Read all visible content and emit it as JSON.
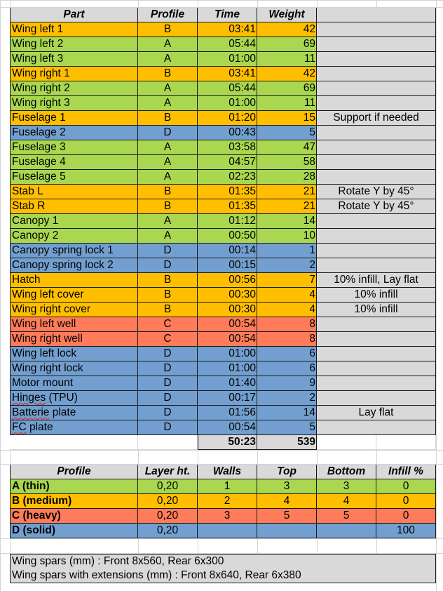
{
  "parts_table": {
    "headers": {
      "part": "Part",
      "profile": "Profile",
      "time": "Time",
      "weight": "Weight"
    },
    "rows": [
      {
        "part": "Wing left 1",
        "profile": "B",
        "time": "03:41",
        "weight": "42",
        "note": ""
      },
      {
        "part": "Wing left 2",
        "profile": "A",
        "time": "05:44",
        "weight": "69",
        "note": ""
      },
      {
        "part": "Wing left 3",
        "profile": "A",
        "time": "01:00",
        "weight": "11",
        "note": ""
      },
      {
        "part": "Wing right 1",
        "profile": "B",
        "time": "03:41",
        "weight": "42",
        "note": ""
      },
      {
        "part": "Wing right 2",
        "profile": "A",
        "time": "05:44",
        "weight": "69",
        "note": ""
      },
      {
        "part": "Wing right 3",
        "profile": "A",
        "time": "01:00",
        "weight": "11",
        "note": ""
      },
      {
        "part": "Fuselage 1",
        "profile": "B",
        "time": "01:20",
        "weight": "15",
        "note": "Support if needed"
      },
      {
        "part": "Fuselage 2",
        "profile": "D",
        "time": "00:43",
        "weight": "5",
        "note": ""
      },
      {
        "part": "Fuselage 3",
        "profile": "A",
        "time": "03:58",
        "weight": "47",
        "note": ""
      },
      {
        "part": "Fuselage 4",
        "profile": "A",
        "time": "04:57",
        "weight": "58",
        "note": ""
      },
      {
        "part": "Fuselage 5",
        "profile": "A",
        "time": "02:23",
        "weight": "28",
        "note": ""
      },
      {
        "part": "Stab L",
        "profile": "B",
        "time": "01:35",
        "weight": "21",
        "note": "Rotate Y by 45°"
      },
      {
        "part": "Stab R",
        "profile": "B",
        "time": "01:35",
        "weight": "21",
        "note": "Rotate Y by 45°"
      },
      {
        "part": "Canopy 1",
        "profile": "A",
        "time": "01:12",
        "weight": "14",
        "note": ""
      },
      {
        "part": "Canopy 2",
        "profile": "A",
        "time": "00:50",
        "weight": "10",
        "note": ""
      },
      {
        "part": "Canopy spring lock 1",
        "profile": "D",
        "time": "00:14",
        "weight": "1",
        "note": ""
      },
      {
        "part": "Canopy spring lock 2",
        "profile": "D",
        "time": "00:15",
        "weight": "2",
        "note": ""
      },
      {
        "part": "Hatch",
        "profile": "B",
        "time": "00:56",
        "weight": "7",
        "note": "10% infill, Lay flat"
      },
      {
        "part": "Wing left cover",
        "profile": "B",
        "time": "00:30",
        "weight": "4",
        "note": "10% infill"
      },
      {
        "part": "Wing right cover",
        "profile": "B",
        "time": "00:30",
        "weight": "4",
        "note": "10% infill"
      },
      {
        "part": "Wing left well",
        "profile": "C",
        "time": "00:54",
        "weight": "8",
        "note": ""
      },
      {
        "part": "Wing right well",
        "profile": "C",
        "time": "00:54",
        "weight": "8",
        "note": ""
      },
      {
        "part": "Wing left lock",
        "profile": "D",
        "time": "01:00",
        "weight": "6",
        "note": ""
      },
      {
        "part": "Wing right lock",
        "profile": "D",
        "time": "01:00",
        "weight": "6",
        "note": ""
      },
      {
        "part": "Motor mount",
        "profile": "D",
        "time": "01:40",
        "weight": "9",
        "note": ""
      },
      {
        "part": "Hinges (TPU)",
        "profile": "D",
        "time": "00:17",
        "weight": "2",
        "note": ""
      },
      {
        "part": "Batterie plate",
        "profile": "D",
        "time": "01:56",
        "weight": "14",
        "note": "Lay flat"
      },
      {
        "part": "FC plate",
        "profile": "D",
        "time": "00:54",
        "weight": "5",
        "note": ""
      }
    ],
    "totals": {
      "time": "50:23",
      "weight": "539"
    }
  },
  "profiles_table": {
    "headers": {
      "profile": "Profile",
      "layer": "Layer ht.",
      "walls": "Walls",
      "top": "Top",
      "bottom": "Bottom",
      "infill": "Infill %"
    },
    "rows": [
      {
        "key": "A",
        "name": "A (thin)",
        "layer": "0,20",
        "walls": "1",
        "top": "3",
        "bottom": "3",
        "infill": "0"
      },
      {
        "key": "B",
        "name": "B (medium)",
        "layer": "0,20",
        "walls": "2",
        "top": "4",
        "bottom": "4",
        "infill": "0"
      },
      {
        "key": "C",
        "name": "C (heavy)",
        "layer": "0,20",
        "walls": "3",
        "top": "5",
        "bottom": "5",
        "infill": "0"
      },
      {
        "key": "D",
        "name": "D (solid)",
        "layer": "0,20",
        "walls": "",
        "top": "",
        "bottom": "",
        "infill": "100"
      }
    ]
  },
  "spars": {
    "line1": "Wing spars (mm) : Front 8x560, Rear 6x300",
    "line2": "Wing spars with extensions (mm) : Front 8x640, Rear 6x380"
  },
  "colors": {
    "profile_A": "#a9d74f",
    "profile_B": "#ffbf00",
    "profile_C": "#ff7b59",
    "profile_D": "#729fcf",
    "header_gray": "#d9d9d9"
  }
}
